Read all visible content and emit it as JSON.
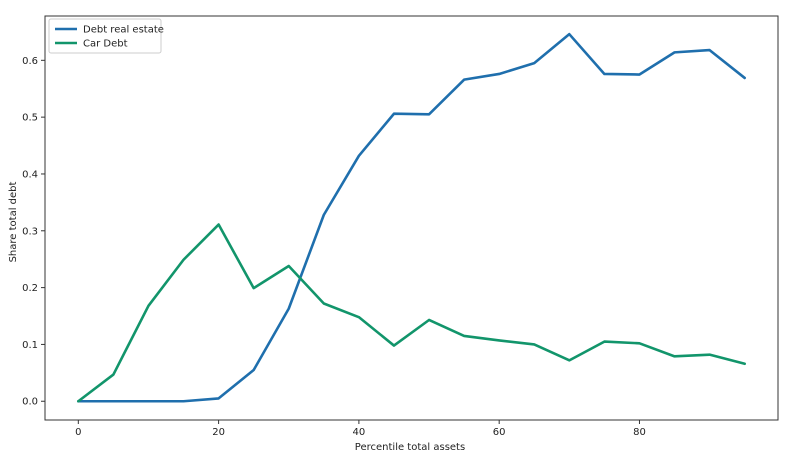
{
  "chart_data": {
    "type": "line",
    "title": "",
    "xlabel": "Percentile total assets",
    "ylabel": "Share total debt",
    "xlim": [
      -4.75,
      99.75
    ],
    "ylim": [
      -0.033,
      0.678
    ],
    "xticks": [
      0,
      20,
      40,
      60,
      80
    ],
    "yticks": [
      0.0,
      0.1,
      0.2,
      0.3,
      0.4,
      0.5,
      0.6
    ],
    "xtick_labels": [
      "0",
      "20",
      "40",
      "60",
      "80"
    ],
    "ytick_labels": [
      "0.0",
      "0.1",
      "0.2",
      "0.3",
      "0.4",
      "0.5",
      "0.6"
    ],
    "grid": false,
    "legend_position": "top-left",
    "x": [
      0,
      5,
      10,
      15,
      20,
      25,
      30,
      35,
      40,
      45,
      50,
      55,
      60,
      65,
      70,
      75,
      80,
      85,
      90,
      95
    ],
    "series": [
      {
        "name": "Debt real estate",
        "color": "#1f6fad",
        "values": [
          0.0,
          0.0,
          0.0,
          0.0,
          0.005,
          0.055,
          0.163,
          0.328,
          0.432,
          0.506,
          0.505,
          0.566,
          0.576,
          0.595,
          0.646,
          0.576,
          0.575,
          0.614,
          0.618,
          0.569
        ]
      },
      {
        "name": "Car Debt",
        "color": "#12956b",
        "values": [
          0.0,
          0.047,
          0.168,
          0.249,
          0.311,
          0.199,
          0.238,
          0.172,
          0.148,
          0.098,
          0.143,
          0.115,
          0.107,
          0.1,
          0.072,
          0.105,
          0.102,
          0.079,
          0.082,
          0.066
        ]
      }
    ]
  }
}
